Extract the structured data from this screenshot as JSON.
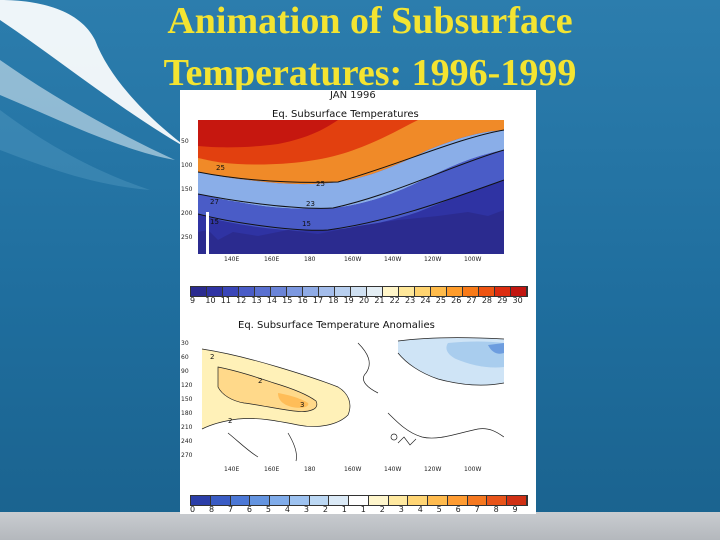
{
  "slide": {
    "title_line1": "Animation of Subsurface",
    "title_line2": "Temperatures: 1996-1999"
  },
  "frame": {
    "date": "JAN 1996"
  },
  "top_panel": {
    "title": "Eq. Subsurface Temperatures",
    "y_ticks": [
      "50",
      "100",
      "150",
      "200",
      "250"
    ],
    "x_ticks": [
      "140E",
      "160E",
      "180",
      "160W",
      "140W",
      "120W",
      "100W"
    ],
    "contour_labels": [
      "25",
      "25",
      "27",
      "23",
      "15",
      "15"
    ],
    "colorbar": {
      "ticks": [
        "9",
        "10",
        "11",
        "12",
        "13",
        "14",
        "15",
        "16",
        "17",
        "18",
        "19",
        "20",
        "21",
        "22",
        "23",
        "24",
        "25",
        "26",
        "27",
        "28",
        "29",
        "30"
      ],
      "colors": [
        "#2b2b8f",
        "#2f33a3",
        "#3a46b8",
        "#4a5cc7",
        "#5a70d0",
        "#6a84d8",
        "#7c98e0",
        "#8fabe6",
        "#a4bdeb",
        "#b8cfef",
        "#cfe0f2",
        "#e4eef4",
        "#fff5c8",
        "#ffe89a",
        "#ffd470",
        "#ffbb4a",
        "#ff9c2a",
        "#f87a18",
        "#ee5412",
        "#dc2d10",
        "#c21610"
      ]
    }
  },
  "bottom_panel": {
    "title": "Eq. Subsurface Temperature Anomalies",
    "y_ticks": [
      "30",
      "60",
      "90",
      "120",
      "150",
      "180",
      "210",
      "240",
      "270"
    ],
    "x_ticks": [
      "140E",
      "160E",
      "180",
      "160W",
      "140W",
      "120W",
      "100W"
    ],
    "contour_labels": [
      "2",
      "2",
      "2",
      "3"
    ],
    "colorbar": {
      "ticks": [
        "0",
        "8",
        "7",
        "6",
        "5",
        "4",
        "3",
        "2",
        "1",
        "1",
        "2",
        "3",
        "4",
        "5",
        "6",
        "7",
        "8",
        "9"
      ],
      "colors": [
        "#2b3ea8",
        "#3a5cc4",
        "#4c78d6",
        "#6494e0",
        "#80acea",
        "#9dc2f0",
        "#bcd8f4",
        "#dbeaf7",
        "#ffffff",
        "#fff6cc",
        "#ffe9a0",
        "#ffd574",
        "#ffbb4e",
        "#ff9c32",
        "#f57820",
        "#e8541a",
        "#d03014"
      ]
    }
  }
}
